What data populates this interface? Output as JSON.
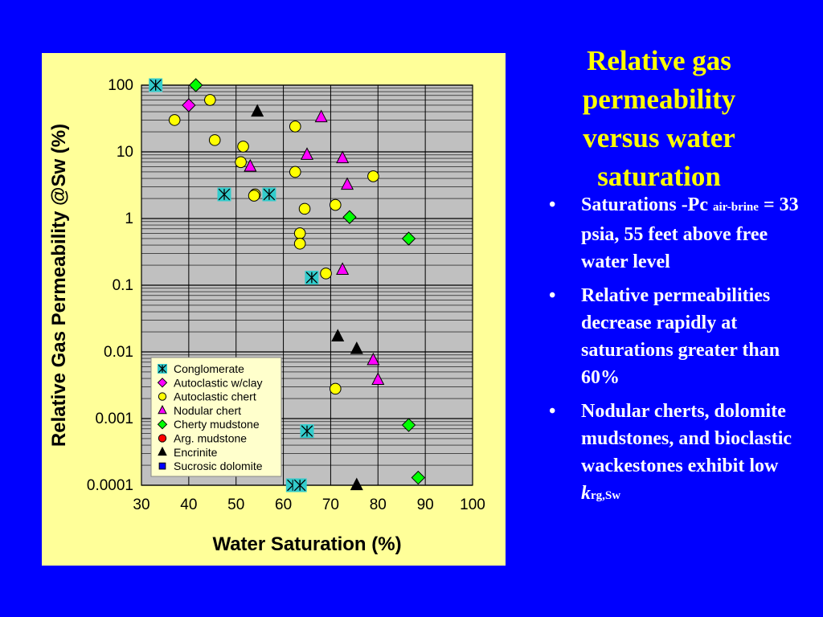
{
  "slide": {
    "title": "Relative gas permeability versus water saturation",
    "bullets": [
      {
        "main": "Saturations -Pc ",
        "sub": "air-brine",
        "rest": " = 33 psia, 55 feet above free water level"
      },
      {
        "main": "Relative permeabilities decrease rapidly at saturations greater than 60%",
        "sub": "",
        "rest": ""
      },
      {
        "main": "Nodular cherts, dolomite mudstones, and bioclastic wackestones exhibit low ",
        "k": "k",
        "sub": "rg,Sw",
        "rest": ""
      }
    ],
    "bullet_symbol": "•",
    "colors": {
      "background": "#0000FF",
      "title": "#FFFF00",
      "text": "#FFFFFF",
      "panel": "#FFFF99",
      "plot": "#C0C0C0"
    }
  },
  "chart_data": {
    "type": "scatter",
    "title": "",
    "xlabel": "Water Saturation (%)",
    "ylabel": "Relative Gas Permeability @Sw (%)",
    "xlim": [
      30,
      100
    ],
    "ylim": [
      0.0001,
      100
    ],
    "yscale": "log",
    "grid": true,
    "x_ticks": [
      "30",
      "40",
      "50",
      "60",
      "70",
      "80",
      "90",
      "100"
    ],
    "y_ticks": [
      "0.0001",
      "0.001",
      "0.01",
      "0.1",
      "1",
      "10",
      "100"
    ],
    "legend_position": "bottom-left inside plot",
    "series": [
      {
        "name": "Conglomerate",
        "marker": "asterisk-square",
        "color": "#33CCCC",
        "points": [
          [
            33,
            100
          ],
          [
            47.5,
            2.3
          ],
          [
            57,
            2.3
          ],
          [
            66,
            0.13
          ],
          [
            65,
            0.00065
          ],
          [
            62,
            0.0001
          ],
          [
            63.5,
            0.0001
          ]
        ]
      },
      {
        "name": "Autoclastic w/clay",
        "marker": "diamond",
        "color": "#FF00FF",
        "points": [
          [
            40,
            50
          ]
        ]
      },
      {
        "name": "Autoclastic chert",
        "marker": "circle",
        "color": "#FFFF00",
        "points": [
          [
            37,
            30
          ],
          [
            44.5,
            60
          ],
          [
            45.5,
            15
          ],
          [
            51.5,
            12
          ],
          [
            51,
            7
          ],
          [
            54,
            2.3
          ],
          [
            53.8,
            2.2
          ],
          [
            62.5,
            24
          ],
          [
            62.5,
            5
          ],
          [
            64.5,
            1.4
          ],
          [
            63.5,
            0.6
          ],
          [
            63.5,
            0.42
          ],
          [
            69,
            0.15
          ],
          [
            71,
            1.6
          ],
          [
            79,
            4.3
          ],
          [
            71,
            0.0028
          ]
        ]
      },
      {
        "name": "Nodular chert",
        "marker": "triangle",
        "color": "#FF00FF",
        "points": [
          [
            68,
            33
          ],
          [
            65,
            9
          ],
          [
            53,
            6
          ],
          [
            72.5,
            8
          ],
          [
            73.5,
            3.2
          ],
          [
            72.5,
            0.17
          ],
          [
            79,
            0.0075
          ],
          [
            80,
            0.0038
          ]
        ]
      },
      {
        "name": "Cherty mudstone",
        "marker": "diamond",
        "color": "#00FF00",
        "points": [
          [
            41.5,
            100
          ],
          [
            74,
            1.05
          ],
          [
            86.5,
            0.5
          ],
          [
            86.5,
            0.0008
          ],
          [
            88.5,
            0.00013
          ]
        ]
      },
      {
        "name": "Arg. mudstone",
        "marker": "circle",
        "color": "#FF0000",
        "points": []
      },
      {
        "name": "Encrinite",
        "marker": "triangle",
        "color": "#000000",
        "points": [
          [
            54.5,
            40
          ],
          [
            71.5,
            0.017
          ],
          [
            75.5,
            0.011
          ],
          [
            75.5,
            0.0001
          ]
        ]
      },
      {
        "name": "Sucrosic dolomite",
        "marker": "square",
        "color": "#0000FF",
        "points": []
      }
    ]
  }
}
